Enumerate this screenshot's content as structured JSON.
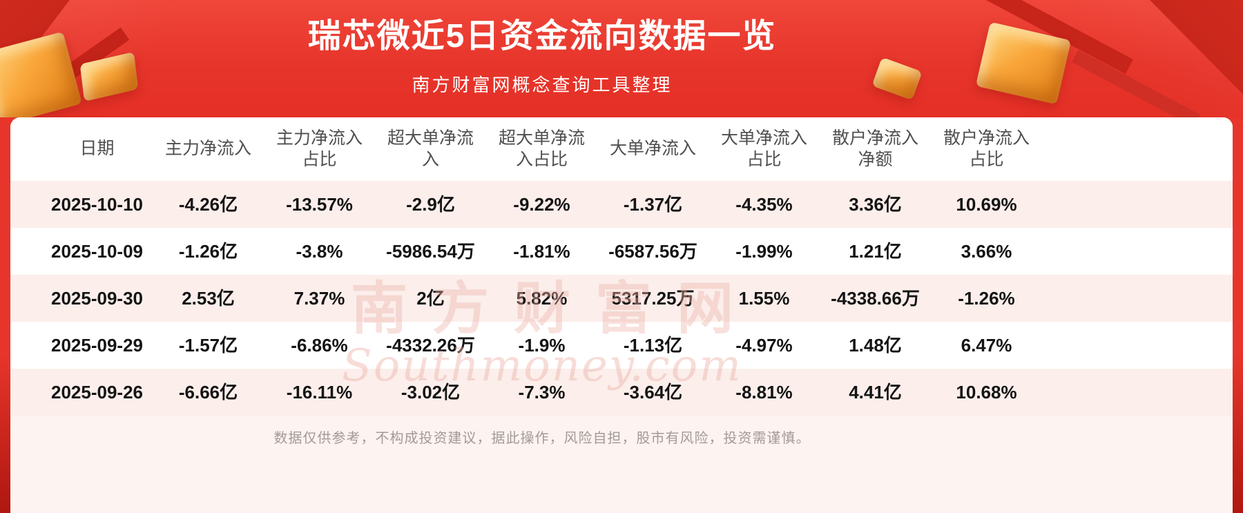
{
  "page": {
    "title": "瑞芯微近5日资金流向数据一览",
    "subtitle": "南方财富网概念查询工具整理",
    "disclaimer": "数据仅供参考，不构成投资建议，据此操作，风险自担，股市有风险，投资需谨慎。",
    "watermark_cn": "南方财富网",
    "watermark_en": "Southmoney.com"
  },
  "colors": {
    "banner_red": "#e7352b",
    "ribbon_dark_red": "#c8251b",
    "gold_accent": "#f5a02d",
    "card_bg": "#ffffff",
    "row_stripe": "#fbeeeb",
    "footer_band": "#fdf3f0",
    "header_text": "#4f4f4f",
    "data_text": "#141414",
    "disclaimer_text": "#a39a98",
    "title_text": "#ffffff"
  },
  "chart_data": {
    "type": "table",
    "title": "瑞芯微近5日资金流向数据一览",
    "columns": [
      "日期",
      "主力净流入",
      "主力净流入占比",
      "超大单净流入",
      "超大单净流入占比",
      "大单净流入",
      "大单净流入占比",
      "散户净流入净额",
      "散户净流入占比"
    ],
    "rows": [
      [
        "2025-10-10",
        "-4.26亿",
        "-13.57%",
        "-2.9亿",
        "-9.22%",
        "-1.37亿",
        "-4.35%",
        "3.36亿",
        "10.69%"
      ],
      [
        "2025-10-09",
        "-1.26亿",
        "-3.8%",
        "-5986.54万",
        "-1.81%",
        "-6587.56万",
        "-1.99%",
        "1.21亿",
        "3.66%"
      ],
      [
        "2025-09-30",
        "2.53亿",
        "7.37%",
        "2亿",
        "5.82%",
        "5317.25万",
        "1.55%",
        "-4338.66万",
        "-1.26%"
      ],
      [
        "2025-09-29",
        "-1.57亿",
        "-6.86%",
        "-4332.26万",
        "-1.9%",
        "-1.13亿",
        "-4.97%",
        "1.48亿",
        "6.47%"
      ],
      [
        "2025-09-26",
        "-6.66亿",
        "-16.11%",
        "-3.02亿",
        "-7.3%",
        "-3.64亿",
        "-8.81%",
        "4.41亿",
        "10.68%"
      ]
    ]
  }
}
